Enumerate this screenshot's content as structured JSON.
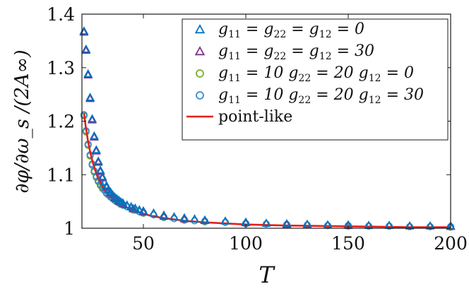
{
  "chart_data": {
    "type": "scatter",
    "xlabel": "T",
    "ylabel": "∂φ/∂ω_s /(2A∞)",
    "xlim": [
      20,
      200
    ],
    "ylim": [
      1.0,
      1.4
    ],
    "xticks": [
      "50",
      "100",
      "150",
      "200"
    ],
    "yticks": [
      "1",
      "1.1",
      "1.2",
      "1.3",
      "1.4"
    ],
    "grid": false,
    "legend_position": "top-right",
    "colors": {
      "blue": "#0072BD",
      "purple": "#7E2F8E",
      "green": "#77AC30",
      "lightblue": "#3A8BC8",
      "red": "#E0201B"
    },
    "series": [
      {
        "name": "g11 = g22 = g12 = 0",
        "legend": [
          "g",
          "11",
          " = g",
          "22",
          " = g",
          "12",
          " = 0"
        ],
        "marker": "triangle",
        "color": "#0072BD",
        "x": [
          21,
          22,
          23,
          24,
          25,
          26,
          27,
          28,
          29,
          30,
          31,
          32,
          33,
          34,
          35,
          36,
          37,
          38,
          39,
          40,
          42,
          44,
          46,
          48,
          50,
          55,
          60,
          65,
          70,
          75,
          80,
          90,
          100,
          110,
          120,
          130,
          140,
          150,
          160,
          170,
          180,
          190,
          200
        ],
        "y": [
          1.368,
          1.334,
          1.288,
          1.244,
          1.204,
          1.172,
          1.146,
          1.125,
          1.108,
          1.096,
          1.086,
          1.079,
          1.072,
          1.067,
          1.062,
          1.058,
          1.055,
          1.052,
          1.049,
          1.047,
          1.043,
          1.04,
          1.037,
          1.034,
          1.032,
          1.028,
          1.024,
          1.021,
          1.019,
          1.017,
          1.015,
          1.013,
          1.011,
          1.009,
          1.008,
          1.007,
          1.006,
          1.006,
          1.005,
          1.005,
          1.004,
          1.004,
          1.004
        ]
      },
      {
        "name": "g11 = g22 = g12 = 30",
        "legend": [
          "g",
          "11",
          " = g",
          "22",
          " = g",
          "12",
          " = 30"
        ],
        "marker": "triangle",
        "color": "#7E2F8E",
        "x": [
          21,
          22,
          23,
          24,
          25,
          26,
          27,
          28,
          29,
          30,
          32,
          34,
          36,
          38,
          40,
          45,
          50,
          60,
          70,
          80,
          100,
          120,
          150,
          200
        ],
        "y": [
          1.366,
          1.332,
          1.286,
          1.242,
          1.202,
          1.17,
          1.144,
          1.123,
          1.106,
          1.094,
          1.077,
          1.065,
          1.056,
          1.05,
          1.045,
          1.036,
          1.03,
          1.022,
          1.017,
          1.014,
          1.01,
          1.007,
          1.005,
          1.003
        ]
      },
      {
        "name": "g11 = 10 g22 = 20 g12 = 0",
        "legend": [
          "g",
          "11",
          " = 10 g",
          "22",
          " = 20 g",
          "12",
          " = 0"
        ],
        "marker": "circle",
        "color": "#77AC30",
        "x": [
          21,
          22,
          23,
          24,
          25,
          26,
          27,
          28,
          29,
          30,
          32,
          34,
          36,
          38,
          40,
          45,
          50,
          60,
          70,
          80,
          100,
          120,
          150,
          200
        ],
        "y": [
          1.21,
          1.18,
          1.155,
          1.135,
          1.118,
          1.105,
          1.095,
          1.087,
          1.08,
          1.074,
          1.065,
          1.058,
          1.052,
          1.047,
          1.043,
          1.034,
          1.028,
          1.02,
          1.015,
          1.012,
          1.008,
          1.006,
          1.004,
          1.002
        ]
      },
      {
        "name": "g11 = 10 g22 = 20 g12 = 30",
        "legend": [
          "g",
          "11",
          " = 10 g",
          "22",
          " = 20 g",
          "12",
          " = 30"
        ],
        "marker": "circle",
        "color": "#3A8BC8",
        "x": [
          21,
          22,
          23,
          24,
          25,
          26,
          27,
          28,
          29,
          30,
          31,
          32,
          33,
          34,
          35,
          36,
          37,
          38,
          39,
          40,
          42,
          44,
          46,
          48,
          50,
          55,
          60,
          65,
          70,
          75,
          80,
          90,
          100,
          110,
          120,
          130,
          140,
          150,
          160,
          170,
          180,
          190,
          200
        ],
        "y": [
          1.212,
          1.182,
          1.157,
          1.137,
          1.12,
          1.107,
          1.097,
          1.089,
          1.082,
          1.076,
          1.071,
          1.066,
          1.062,
          1.059,
          1.056,
          1.053,
          1.05,
          1.048,
          1.046,
          1.044,
          1.04,
          1.037,
          1.034,
          1.031,
          1.029,
          1.025,
          1.021,
          1.018,
          1.016,
          1.014,
          1.013,
          1.011,
          1.009,
          1.008,
          1.007,
          1.006,
          1.005,
          1.005,
          1.004,
          1.004,
          1.003,
          1.003,
          1.003
        ]
      },
      {
        "name": "point-like",
        "legend": [
          "point-like"
        ],
        "marker": "line",
        "color": "#E0201B",
        "x": [
          21,
          22,
          23,
          24,
          25,
          26,
          27,
          28,
          29,
          30,
          32,
          34,
          36,
          38,
          40,
          45,
          50,
          55,
          60,
          70,
          80,
          90,
          100,
          120,
          140,
          160,
          180,
          200
        ],
        "y": [
          1.215,
          1.186,
          1.162,
          1.143,
          1.127,
          1.114,
          1.102,
          1.093,
          1.085,
          1.078,
          1.067,
          1.058,
          1.052,
          1.046,
          1.042,
          1.033,
          1.027,
          1.022,
          1.019,
          1.014,
          1.011,
          1.009,
          1.007,
          1.005,
          1.004,
          1.003,
          1.002,
          1.002
        ]
      }
    ]
  }
}
